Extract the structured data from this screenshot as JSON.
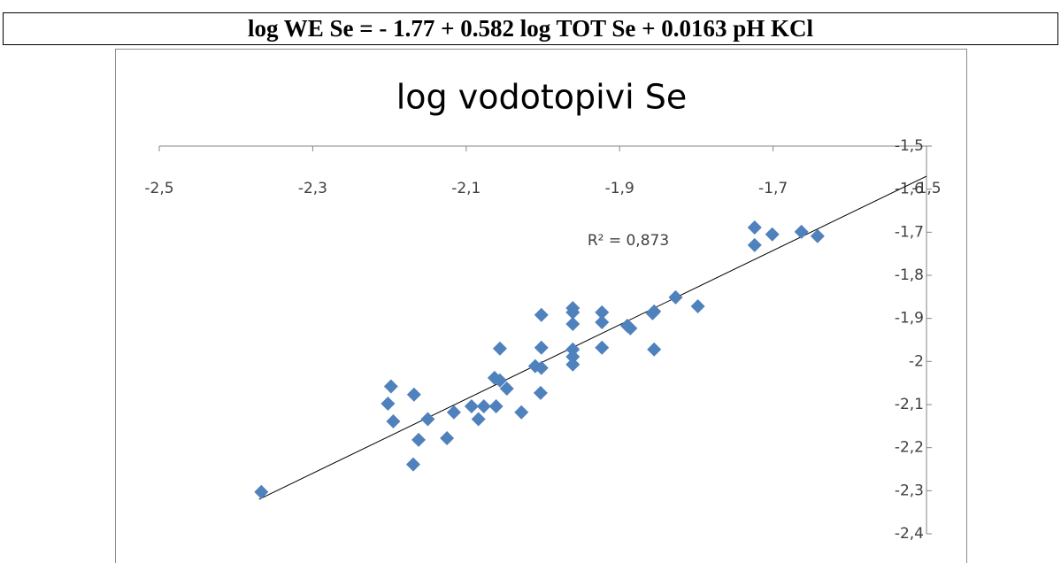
{
  "header": {
    "equation": "log WE Se = - 1.77 + 0.582 log TOT Se + 0.0163 pH KCl"
  },
  "chart_data": {
    "type": "scatter",
    "title": "log vodotopivi Se",
    "annotation": "R² = 0,873",
    "xlim": [
      -2.5,
      -1.5
    ],
    "xticks": [
      {
        "value": -2.5,
        "label": "-2,5"
      },
      {
        "value": -2.3,
        "label": "-2,3"
      },
      {
        "value": -2.1,
        "label": "-2,1"
      },
      {
        "value": -1.9,
        "label": "-1,9"
      },
      {
        "value": -1.7,
        "label": "-1,7"
      },
      {
        "value": -1.5,
        "label": "-1,5"
      }
    ],
    "ylim": [
      -2.4,
      -1.5
    ],
    "yticks": [
      {
        "value": -1.5,
        "label": "-1,5"
      },
      {
        "value": -1.6,
        "label": "-1,6"
      },
      {
        "value": -1.7,
        "label": "-1,7"
      },
      {
        "value": -1.8,
        "label": "-1,8"
      },
      {
        "value": -1.9,
        "label": "-1,9"
      },
      -2,
      {
        "value": -2.1,
        "label": "-2,1"
      },
      {
        "value": -2.2,
        "label": "-2,2"
      },
      {
        "value": -2.3,
        "label": "-2,3"
      },
      {
        "value": -2.4,
        "label": "-2,4"
      }
    ],
    "series": [
      {
        "color": "#4f81bd",
        "x": [
          -2.367,
          -2.198,
          -2.202,
          -2.195,
          -2.168,
          -2.162,
          -2.169,
          -2.15,
          -2.125,
          -2.116,
          -2.093,
          -2.084,
          -2.077,
          -2.061,
          -2.063,
          -2.056,
          -2.056,
          -2.047,
          -2.028,
          -2.01,
          -2.002,
          -2.002,
          -2.002,
          -2.003,
          -1.961,
          -1.961,
          -1.961,
          -1.961,
          -1.961,
          -1.961,
          -1.923,
          -1.923,
          -1.923,
          -1.89,
          -1.886,
          -1.857,
          -1.855,
          -1.855,
          -1.827,
          -1.798,
          -1.724,
          -1.724,
          -1.701,
          -1.663,
          -1.642
        ],
        "values": [
          -2.303,
          -2.058,
          -2.098,
          -2.139,
          -2.077,
          -2.182,
          -2.239,
          -2.134,
          -2.178,
          -2.118,
          -2.104,
          -2.134,
          -2.104,
          -2.104,
          -2.038,
          -1.97,
          -2.044,
          -2.063,
          -2.118,
          -2.011,
          -1.892,
          -1.968,
          -2.015,
          -2.073,
          -1.876,
          -1.886,
          -1.913,
          -1.972,
          -1.989,
          -2.007,
          -1.886,
          -1.909,
          -1.968,
          -1.917,
          -1.923,
          -1.888,
          -1.884,
          -1.972,
          -1.851,
          -1.872,
          -1.689,
          -1.73,
          -1.705,
          -1.699,
          -1.709
        ]
      }
    ],
    "trendline": {
      "color": "#000000",
      "x": [
        -2.37,
        -1.5
      ],
      "y": [
        -2.32,
        -1.57
      ]
    }
  }
}
